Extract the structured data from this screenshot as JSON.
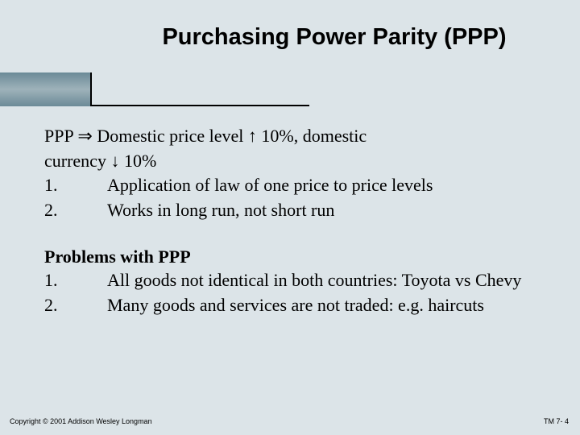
{
  "title": "Purchasing Power Parity (PPP)",
  "lead": {
    "line1_pre": "PPP ",
    "line1_sym1": "⇒",
    "line1_mid": " Domestic price level ",
    "line1_sym2": "↑",
    "line1_post": " 10%, domestic",
    "line2_pre": "currency ",
    "line2_sym": "↓",
    "line2_post": " 10%"
  },
  "points": [
    {
      "num": "1.",
      "text": "Application of law of one price to price levels"
    },
    {
      "num": "2.",
      "text": "Works in long run, not short run"
    }
  ],
  "problems_heading": "Problems with PPP",
  "problems": [
    {
      "num": "1.",
      "text": "All goods not identical in both countries: Toyota vs Chevy"
    },
    {
      "num": "2.",
      "text": "Many goods and services are not traded: e.g. haircuts"
    }
  ],
  "footer_left": "Copyright © 2001 Addison Wesley Longman",
  "footer_right": "TM 7- 4",
  "colors": {
    "background": "#dce4e8",
    "bar_gradient_dark": "#6b8a97",
    "bar_gradient_light": "#9eb2ba",
    "text": "#000000"
  }
}
